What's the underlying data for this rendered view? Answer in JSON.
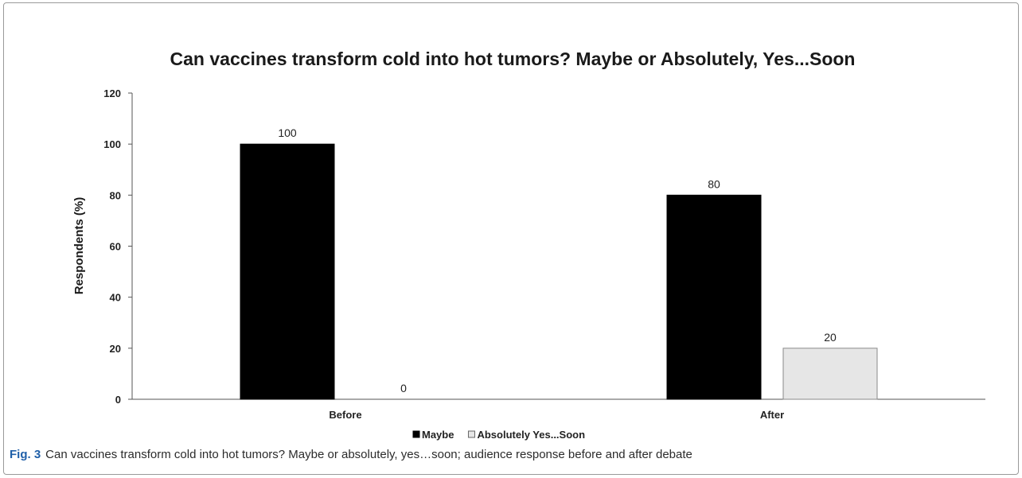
{
  "chart_data": {
    "type": "bar",
    "title": "Can vaccines transform cold into hot tumors? Maybe or Absolutely, Yes...Soon",
    "xlabel": "",
    "ylabel": "Respondents (%)",
    "categories": [
      "Before",
      "After"
    ],
    "series": [
      {
        "name": "Maybe",
        "values": [
          100,
          80
        ],
        "color": "#000000"
      },
      {
        "name": "Absolutely Yes...Soon",
        "values": [
          0,
          20
        ],
        "color": "#e6e6e6"
      }
    ],
    "ylim": [
      0,
      120
    ],
    "yticks": [
      0,
      20,
      40,
      60,
      80,
      100,
      120
    ],
    "grid": false,
    "legend": "bottom-center",
    "data_labels": true
  },
  "caption": {
    "label": "Fig. 3",
    "text": "Can vaccines transform cold into hot tumors? Maybe or absolutely, yes…soon; audience response before and after debate"
  }
}
